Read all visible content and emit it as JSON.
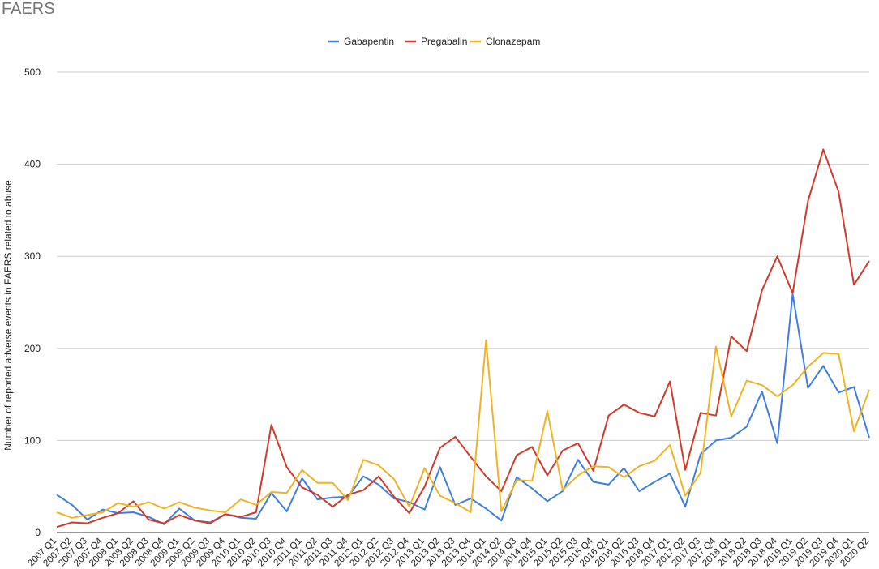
{
  "chart_data": {
    "type": "line",
    "title": "FAERS",
    "xlabel": "",
    "ylabel": "Number of reported adverse events in FAERS related to abuse",
    "ylim": [
      0,
      500
    ],
    "yticks": [
      0,
      100,
      200,
      300,
      400,
      500
    ],
    "grid": true,
    "legend_position": "top",
    "categories": [
      "2007 Q1",
      "2007 Q2",
      "2007 Q3",
      "2007 Q4",
      "2008 Q1",
      "2008 Q2",
      "2008 Q3",
      "2008 Q4",
      "2009 Q1",
      "2009 Q2",
      "2009 Q3",
      "2009 Q4",
      "2010 Q1",
      "2010 Q2",
      "2010 Q3",
      "2010 Q4",
      "2011 Q1",
      "2011 Q2",
      "2011 Q3",
      "2011 Q4",
      "2012 Q1",
      "2012 Q2",
      "2012 Q3",
      "2012 Q4",
      "2013 Q1",
      "2013 Q2",
      "2013 Q3",
      "2013 Q4",
      "2014 Q1",
      "2014 Q2",
      "2014 Q3",
      "2014 Q4",
      "2015 Q1",
      "2015 Q2",
      "2015 Q3",
      "2015 Q4",
      "2016 Q1",
      "2016 Q2",
      "2016 Q3",
      "2016 Q4",
      "2017 Q1",
      "2017 Q2",
      "2017 Q3",
      "2017 Q4",
      "2018 Q1",
      "2018 Q2",
      "2018 Q3",
      "2018 Q4",
      "2019 Q1",
      "2019 Q2",
      "2019 Q3",
      "2019 Q4",
      "2020 Q1",
      "2020 Q2"
    ],
    "series": [
      {
        "name": "Gabapentin",
        "color": "#3f7ee0",
        "values": [
          41,
          30,
          14,
          25,
          21,
          22,
          17,
          9,
          26,
          13,
          11,
          20,
          16,
          15,
          43,
          23,
          59,
          36,
          38,
          39,
          61,
          52,
          37,
          33,
          25,
          71,
          30,
          37,
          26,
          13,
          60,
          48,
          34,
          45,
          79,
          55,
          52,
          70,
          45,
          55,
          64,
          28,
          85,
          100,
          103,
          115,
          153,
          97,
          259,
          157,
          181,
          152,
          158,
          103
        ]
      },
      {
        "name": "Pregabalin",
        "color": "#d03a2b",
        "values": [
          6,
          11,
          10,
          16,
          21,
          34,
          14,
          10,
          19,
          13,
          10,
          20,
          17,
          22,
          117,
          71,
          49,
          41,
          28,
          41,
          46,
          61,
          39,
          21,
          50,
          92,
          104,
          82,
          61,
          45,
          84,
          93,
          62,
          89,
          97,
          67,
          127,
          139,
          130,
          126,
          164,
          68,
          130,
          127,
          213,
          197,
          263,
          300,
          260,
          360,
          416,
          370,
          269,
          295
        ]
      },
      {
        "name": "Clonazepam",
        "color": "#f0b323",
        "values": [
          22,
          16,
          19,
          22,
          32,
          28,
          33,
          26,
          33,
          27,
          24,
          22,
          36,
          30,
          44,
          43,
          68,
          54,
          54,
          35,
          79,
          73,
          58,
          28,
          70,
          40,
          32,
          22,
          209,
          23,
          57,
          56,
          132,
          46,
          62,
          72,
          71,
          60,
          72,
          78,
          95,
          40,
          65,
          202,
          126,
          165,
          160,
          148,
          160,
          180,
          195,
          194,
          110,
          155
        ]
      }
    ]
  }
}
